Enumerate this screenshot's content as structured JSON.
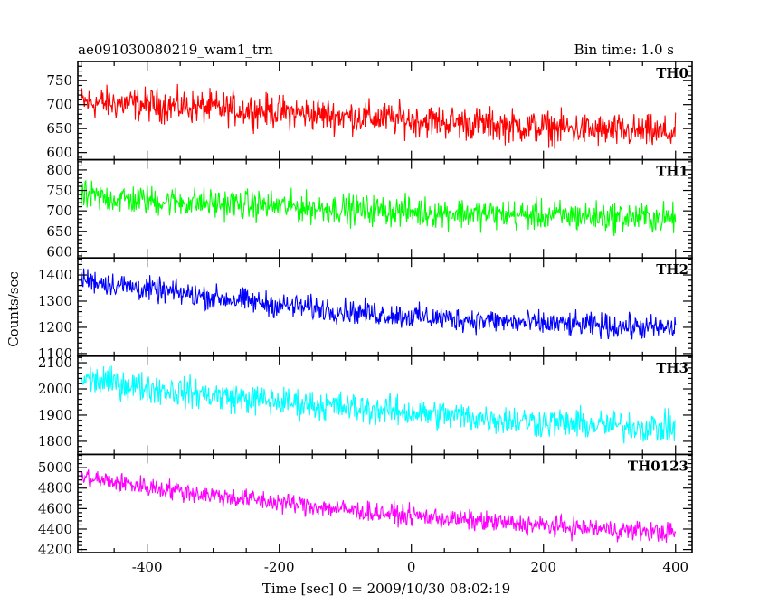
{
  "chart_data": {
    "type": "line",
    "title": "ae091030080219_wam1_trn",
    "subtitle": "Bin time: 1.0 s",
    "xlabel": "Time [sec] 0 = 2009/10/30 08:02:19",
    "ylabel": "Counts/sec",
    "xlim": [
      -505,
      425
    ],
    "xticks": [
      -400,
      -200,
      0,
      200,
      400
    ],
    "grid": false,
    "series": [
      {
        "name": "TH0",
        "color": "#ff0000",
        "ylim": [
          585,
          790
        ],
        "yticks": [
          600,
          650,
          700,
          750
        ],
        "x": [
          -500,
          -400,
          -300,
          -200,
          -100,
          0,
          100,
          200,
          300,
          400
        ],
        "values": [
          705,
          700,
          693,
          685,
          676,
          668,
          660,
          652,
          645,
          640
        ],
        "noise": 30
      },
      {
        "name": "TH1",
        "color": "#00ff00",
        "ylim": [
          585,
          825
        ],
        "yticks": [
          600,
          650,
          700,
          750,
          800
        ],
        "x": [
          -500,
          -400,
          -300,
          -200,
          -100,
          0,
          100,
          200,
          300,
          400
        ],
        "values": [
          735,
          726,
          718,
          711,
          704,
          698,
          693,
          689,
          685,
          682
        ],
        "noise": 32
      },
      {
        "name": "TH2",
        "color": "#0000ff",
        "ylim": [
          1090,
          1465
        ],
        "yticks": [
          1100,
          1200,
          1300,
          1400
        ],
        "x": [
          -500,
          -400,
          -300,
          -200,
          -100,
          0,
          100,
          200,
          300,
          400
        ],
        "values": [
          1385,
          1345,
          1315,
          1285,
          1262,
          1242,
          1227,
          1213,
          1205,
          1195
        ],
        "noise": 40
      },
      {
        "name": "TH3",
        "color": "#00ffff",
        "ylim": [
          1750,
          2125
        ],
        "yticks": [
          1800,
          1900,
          2000,
          2100
        ],
        "x": [
          -500,
          -400,
          -300,
          -200,
          -100,
          0,
          100,
          200,
          300,
          400
        ],
        "values": [
          2040,
          2005,
          1975,
          1950,
          1930,
          1910,
          1890,
          1873,
          1860,
          1850
        ],
        "noise": 50
      },
      {
        "name": "TH0123",
        "color": "#ff00ff",
        "ylim": [
          4170,
          5130
        ],
        "yticks": [
          4200,
          4400,
          4600,
          4800,
          5000
        ],
        "x": [
          -500,
          -400,
          -300,
          -200,
          -100,
          0,
          100,
          200,
          300,
          400
        ],
        "values": [
          4905,
          4815,
          4730,
          4660,
          4590,
          4530,
          4478,
          4432,
          4396,
          4365
        ],
        "noise": 85
      }
    ]
  }
}
